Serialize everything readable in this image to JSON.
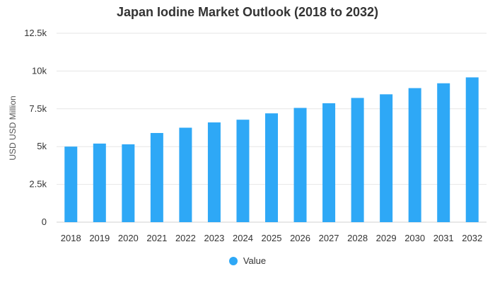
{
  "chart_data": {
    "type": "bar",
    "title": "Japan Iodine Market Outlook (2018 to 2032)",
    "xlabel": "",
    "ylabel": "USD USD Million",
    "ylim": [
      0,
      12500
    ],
    "yticks": [
      0,
      2500,
      5000,
      7500,
      10000,
      12500
    ],
    "ytick_labels": [
      "0",
      "2.5k",
      "5k",
      "7.5k",
      "10k",
      "12.5k"
    ],
    "categories": [
      "2018",
      "2019",
      "2020",
      "2021",
      "2022",
      "2023",
      "2024",
      "2025",
      "2026",
      "2027",
      "2028",
      "2029",
      "2030",
      "2031",
      "2032"
    ],
    "series": [
      {
        "name": "Value",
        "color": "#2ea8f6",
        "values": [
          5000,
          5200,
          5150,
          5900,
          6250,
          6600,
          6780,
          7200,
          7560,
          7870,
          8220,
          8460,
          8870,
          9190,
          9580
        ]
      }
    ],
    "legend": "bottom-center",
    "grid": true
  }
}
